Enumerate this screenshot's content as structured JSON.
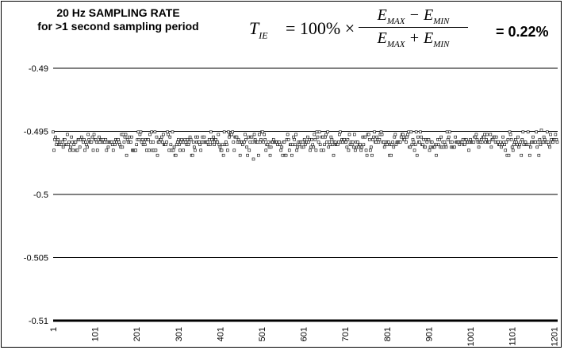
{
  "header": {
    "title_line1": "20 Hz SAMPLING RATE",
    "title_line2": "for >1 second sampling period",
    "formula": {
      "lhs": "T",
      "lhs_sub": "IE",
      "equals": "= 100% ×",
      "num_a": "E",
      "num_a_sub": "MAX",
      "num_op": "−",
      "num_b": "E",
      "num_b_sub": "MIN",
      "den_a": "E",
      "den_a_sub": "MAX",
      "den_op": "+",
      "den_b": "E",
      "den_b_sub": "MIN"
    },
    "result": "= 0.22%"
  },
  "chart_data": {
    "type": "scatter",
    "title": "20 Hz SAMPLING RATE for >1 second sampling period",
    "xlabel": "",
    "ylabel": "",
    "x_range": [
      1,
      1210
    ],
    "x_ticks": [
      "1",
      "101",
      "201",
      "301",
      "401",
      "501",
      "601",
      "701",
      "801",
      "901",
      "1001",
      "1101",
      "1201"
    ],
    "y_range": [
      -0.51,
      -0.49
    ],
    "y_ticks": [
      "-0.49",
      "-0.495",
      "-0.5",
      "-0.505",
      "-0.51"
    ],
    "grid": "horizontal",
    "marker_color": "#000000",
    "series": [
      {
        "points_approx": 1210,
        "y_min": -0.4972,
        "y_max": -0.4949,
        "y_levels": [
          -0.49505,
          -0.49525,
          -0.49545,
          -0.49565,
          -0.49585,
          -0.49605,
          -0.49625,
          -0.4965,
          -0.4969
        ]
      }
    ]
  }
}
